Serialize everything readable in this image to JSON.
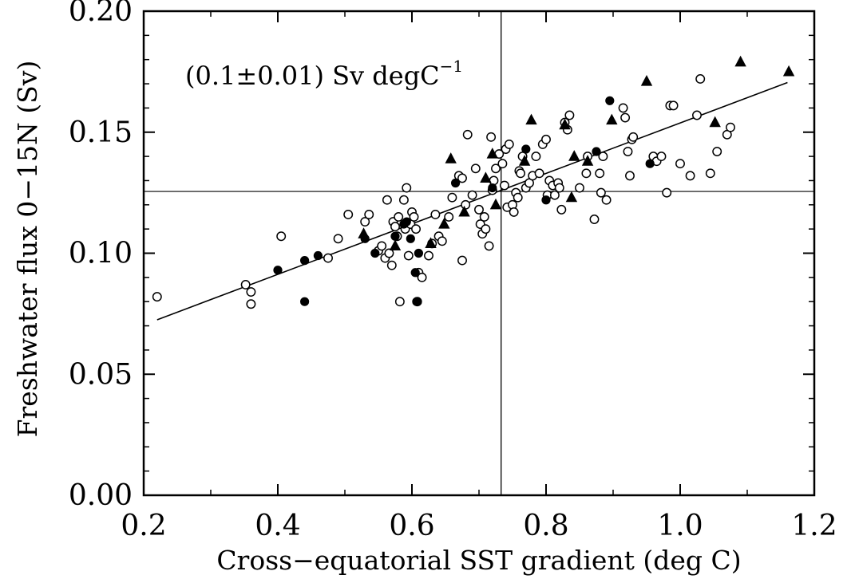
{
  "chart_data": {
    "type": "scatter",
    "title": "",
    "xlabel": "Cross−equatorial SST gradient (deg C)",
    "ylabel": "Freshwater flux 0−15N (Sv)",
    "xlim": [
      0.2,
      1.2
    ],
    "ylim": [
      0.0,
      0.2
    ],
    "x_ticks": [
      "0.2",
      "0.4",
      "0.6",
      "0.8",
      "1.0",
      "1.2"
    ],
    "y_ticks": [
      "0.00",
      "0.05",
      "0.10",
      "0.15",
      "0.20"
    ],
    "annotation": {
      "text": "(0.1±0.01) Sv degC",
      "superscript": "−1"
    },
    "reference_lines": {
      "vertical_x": 0.733,
      "horizontal_y": 0.1255
    },
    "fit_line": {
      "x": [
        0.22,
        1.16
      ],
      "y": [
        0.0725,
        0.1705
      ]
    },
    "grid": false,
    "series": [
      {
        "marker": "open-circle",
        "points": [
          [
            0.22,
            0.082
          ],
          [
            0.352,
            0.087
          ],
          [
            0.36,
            0.079
          ],
          [
            0.36,
            0.084
          ],
          [
            0.405,
            0.107
          ],
          [
            0.475,
            0.098
          ],
          [
            0.49,
            0.106
          ],
          [
            0.505,
            0.116
          ],
          [
            0.53,
            0.113
          ],
          [
            0.536,
            0.116
          ],
          [
            0.55,
            0.101
          ],
          [
            0.555,
            0.103
          ],
          [
            0.56,
            0.098
          ],
          [
            0.563,
            0.122
          ],
          [
            0.566,
            0.1
          ],
          [
            0.57,
            0.095
          ],
          [
            0.572,
            0.113
          ],
          [
            0.575,
            0.111
          ],
          [
            0.578,
            0.107
          ],
          [
            0.58,
            0.115
          ],
          [
            0.582,
            0.08
          ],
          [
            0.588,
            0.122
          ],
          [
            0.59,
            0.11
          ],
          [
            0.592,
            0.127
          ],
          [
            0.595,
            0.099
          ],
          [
            0.598,
            0.112
          ],
          [
            0.6,
            0.117
          ],
          [
            0.603,
            0.115
          ],
          [
            0.606,
            0.11
          ],
          [
            0.608,
            0.08
          ],
          [
            0.61,
            0.092
          ],
          [
            0.615,
            0.09
          ],
          [
            0.625,
            0.099
          ],
          [
            0.63,
            0.104
          ],
          [
            0.635,
            0.116
          ],
          [
            0.64,
            0.107
          ],
          [
            0.645,
            0.105
          ],
          [
            0.655,
            0.115
          ],
          [
            0.66,
            0.123
          ],
          [
            0.67,
            0.132
          ],
          [
            0.675,
            0.131
          ],
          [
            0.675,
            0.097
          ],
          [
            0.68,
            0.12
          ],
          [
            0.683,
            0.149
          ],
          [
            0.69,
            0.124
          ],
          [
            0.695,
            0.135
          ],
          [
            0.7,
            0.118
          ],
          [
            0.702,
            0.112
          ],
          [
            0.705,
            0.108
          ],
          [
            0.708,
            0.115
          ],
          [
            0.71,
            0.11
          ],
          [
            0.715,
            0.103
          ],
          [
            0.718,
            0.148
          ],
          [
            0.72,
            0.126
          ],
          [
            0.722,
            0.13
          ],
          [
            0.725,
            0.135
          ],
          [
            0.73,
            0.141
          ],
          [
            0.735,
            0.137
          ],
          [
            0.738,
            0.128
          ],
          [
            0.74,
            0.143
          ],
          [
            0.742,
            0.119
          ],
          [
            0.745,
            0.145
          ],
          [
            0.75,
            0.12
          ],
          [
            0.752,
            0.117
          ],
          [
            0.755,
            0.125
          ],
          [
            0.758,
            0.123
          ],
          [
            0.76,
            0.134
          ],
          [
            0.762,
            0.133
          ],
          [
            0.765,
            0.14
          ],
          [
            0.77,
            0.127
          ],
          [
            0.775,
            0.129
          ],
          [
            0.78,
            0.132
          ],
          [
            0.785,
            0.14
          ],
          [
            0.79,
            0.133
          ],
          [
            0.795,
            0.145
          ],
          [
            0.8,
            0.147
          ],
          [
            0.802,
            0.124
          ],
          [
            0.805,
            0.13
          ],
          [
            0.81,
            0.128
          ],
          [
            0.813,
            0.124
          ],
          [
            0.818,
            0.129
          ],
          [
            0.82,
            0.127
          ],
          [
            0.823,
            0.118
          ],
          [
            0.828,
            0.154
          ],
          [
            0.832,
            0.151
          ],
          [
            0.835,
            0.157
          ],
          [
            0.85,
            0.127
          ],
          [
            0.86,
            0.133
          ],
          [
            0.862,
            0.14
          ],
          [
            0.872,
            0.114
          ],
          [
            0.88,
            0.133
          ],
          [
            0.882,
            0.125
          ],
          [
            0.885,
            0.14
          ],
          [
            0.89,
            0.122
          ],
          [
            0.915,
            0.16
          ],
          [
            0.918,
            0.156
          ],
          [
            0.922,
            0.142
          ],
          [
            0.925,
            0.132
          ],
          [
            0.928,
            0.147
          ],
          [
            0.93,
            0.148
          ],
          [
            0.96,
            0.14
          ],
          [
            0.965,
            0.138
          ],
          [
            0.972,
            0.14
          ],
          [
            0.98,
            0.125
          ],
          [
            0.985,
            0.161
          ],
          [
            0.99,
            0.161
          ],
          [
            1.0,
            0.137
          ],
          [
            1.015,
            0.132
          ],
          [
            1.025,
            0.157
          ],
          [
            1.03,
            0.172
          ],
          [
            1.045,
            0.133
          ],
          [
            1.055,
            0.142
          ],
          [
            1.07,
            0.149
          ],
          [
            1.075,
            0.152
          ]
        ]
      },
      {
        "marker": "filled-circle",
        "points": [
          [
            0.4,
            0.093
          ],
          [
            0.44,
            0.097
          ],
          [
            0.44,
            0.08
          ],
          [
            0.46,
            0.099
          ],
          [
            0.53,
            0.106
          ],
          [
            0.545,
            0.1
          ],
          [
            0.575,
            0.107
          ],
          [
            0.588,
            0.112
          ],
          [
            0.592,
            0.113
          ],
          [
            0.598,
            0.106
          ],
          [
            0.605,
            0.092
          ],
          [
            0.607,
            0.08
          ],
          [
            0.61,
            0.1
          ],
          [
            0.665,
            0.129
          ],
          [
            0.72,
            0.127
          ],
          [
            0.77,
            0.143
          ],
          [
            0.8,
            0.122
          ],
          [
            0.875,
            0.142
          ],
          [
            0.895,
            0.163
          ],
          [
            0.955,
            0.137
          ]
        ]
      },
      {
        "marker": "filled-triangle",
        "points": [
          [
            0.528,
            0.108
          ],
          [
            0.575,
            0.103
          ],
          [
            0.628,
            0.104
          ],
          [
            0.648,
            0.112
          ],
          [
            0.658,
            0.139
          ],
          [
            0.678,
            0.117
          ],
          [
            0.71,
            0.131
          ],
          [
            0.72,
            0.141
          ],
          [
            0.725,
            0.12
          ],
          [
            0.768,
            0.138
          ],
          [
            0.778,
            0.155
          ],
          [
            0.828,
            0.153
          ],
          [
            0.838,
            0.123
          ],
          [
            0.842,
            0.14
          ],
          [
            0.862,
            0.138
          ],
          [
            0.898,
            0.155
          ],
          [
            0.95,
            0.171
          ],
          [
            1.052,
            0.154
          ],
          [
            1.09,
            0.179
          ],
          [
            1.162,
            0.175
          ]
        ]
      }
    ]
  }
}
